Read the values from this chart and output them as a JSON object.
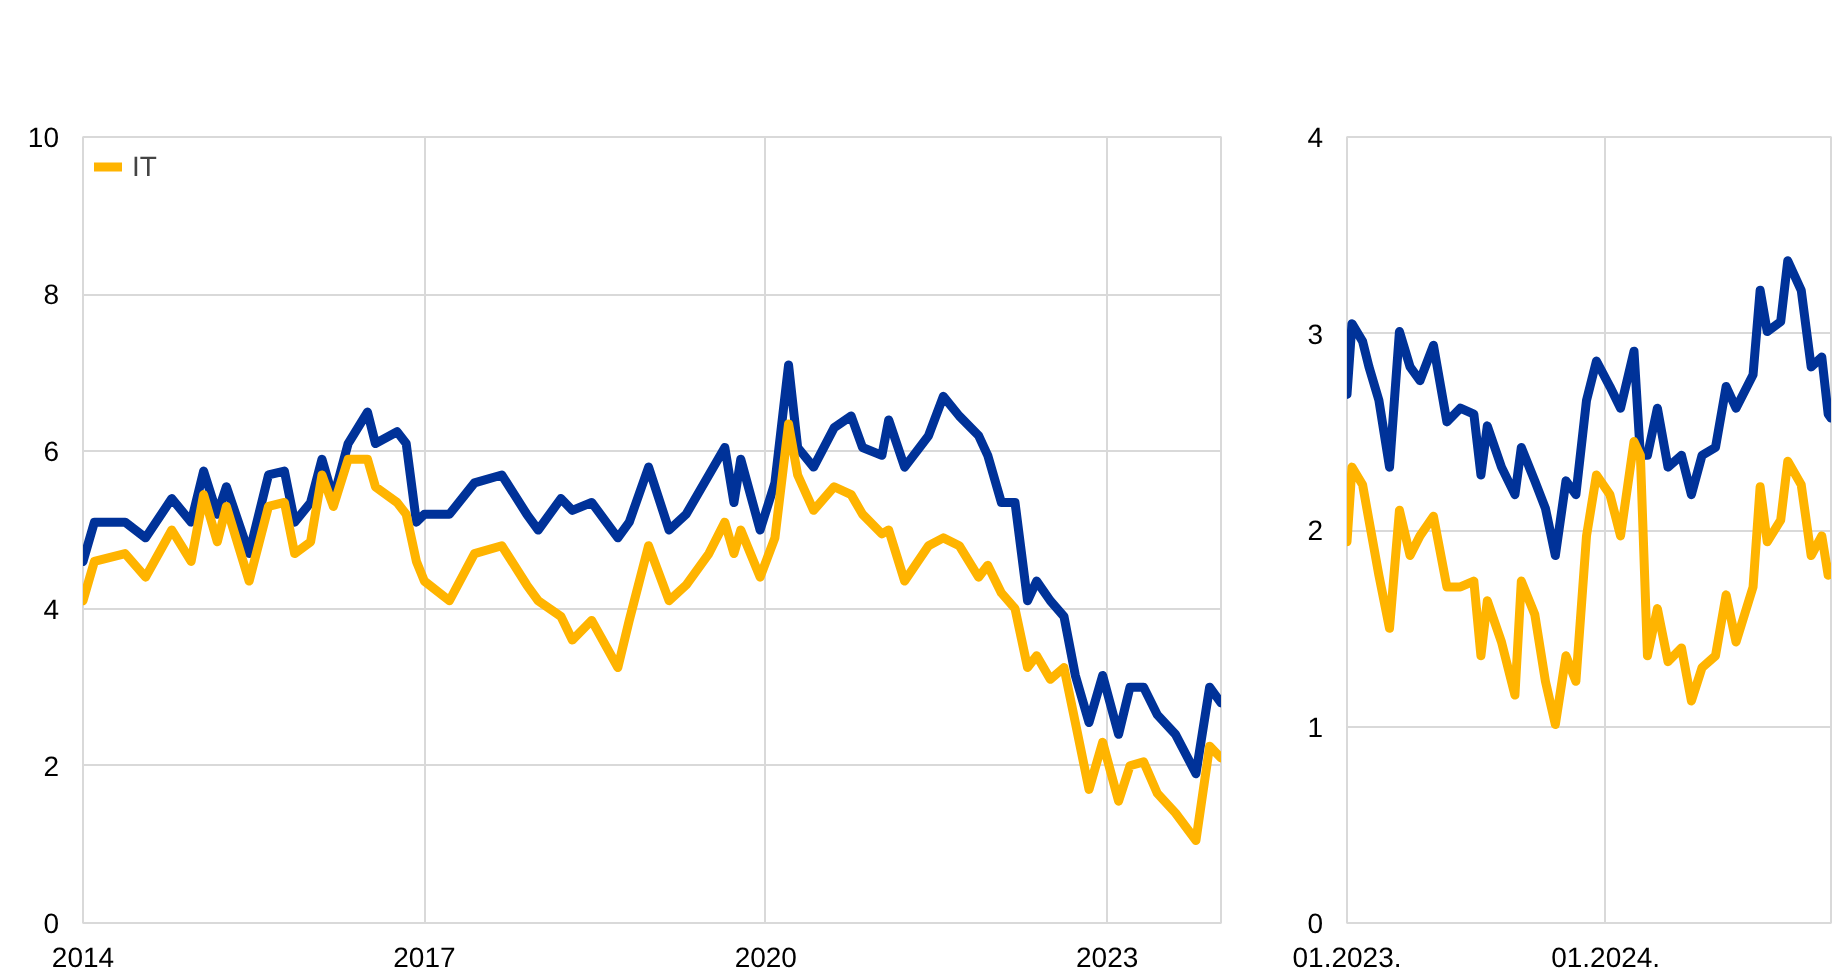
{
  "chart_data": [
    {
      "type": "line",
      "legend": "top left",
      "grid": true,
      "xlim": [
        2014,
        2024.0
      ],
      "xticks": [
        2014,
        2017,
        2020,
        2023
      ],
      "ylim": [
        0,
        10
      ],
      "yticks": [
        0,
        2,
        4,
        6,
        8,
        10
      ],
      "series": [
        {
          "color": "#003299",
          "x": [
            2014.0,
            2014.1,
            2014.37,
            2014.55,
            2014.78,
            2014.95,
            2015.06,
            2015.18,
            2015.26,
            2015.46,
            2015.63,
            2015.77,
            2015.86,
            2016.0,
            2016.1,
            2016.2,
            2016.33,
            2016.5,
            2016.57,
            2016.76,
            2016.84,
            2016.93,
            2017.0,
            2017.22,
            2017.44,
            2017.68,
            2017.9,
            2018.0,
            2018.2,
            2018.3,
            2018.47,
            2018.7,
            2018.8,
            2018.97,
            2019.15,
            2019.3,
            2019.5,
            2019.64,
            2019.72,
            2019.78,
            2019.95,
            2020.08,
            2020.2,
            2020.28,
            2020.42,
            2020.6,
            2020.75,
            2020.85,
            2021.02,
            2021.08,
            2021.22,
            2021.43,
            2021.56,
            2021.7,
            2021.87,
            2021.95,
            2022.07,
            2022.19,
            2022.3,
            2022.38,
            2022.5,
            2022.62,
            2022.72,
            2022.84,
            2022.96,
            2023.1,
            2023.2,
            2023.32,
            2023.44,
            2023.6,
            2023.78,
            2023.9,
            2024.0
          ],
          "values": [
            4.6,
            5.1,
            5.1,
            4.9,
            5.4,
            5.1,
            5.75,
            5.2,
            5.55,
            4.7,
            5.7,
            5.75,
            5.1,
            5.35,
            5.9,
            5.4,
            6.1,
            6.5,
            6.1,
            6.25,
            6.1,
            5.1,
            5.2,
            5.2,
            5.6,
            5.7,
            5.2,
            5.0,
            5.4,
            5.25,
            5.35,
            4.9,
            5.1,
            5.8,
            5.0,
            5.2,
            5.7,
            6.05,
            5.35,
            5.9,
            5.0,
            5.6,
            7.1,
            6.05,
            5.8,
            6.3,
            6.45,
            6.05,
            5.95,
            6.4,
            5.8,
            6.2,
            6.7,
            6.45,
            6.2,
            5.95,
            5.35,
            5.35,
            4.1,
            4.35,
            4.1,
            3.9,
            3.15,
            2.55,
            3.15,
            2.4,
            3.0,
            3.0,
            2.65,
            2.4,
            1.9,
            3.0,
            2.8
          ]
        },
        {
          "name": "IT",
          "color": "#ffb400",
          "x": [
            2014.0,
            2014.1,
            2014.37,
            2014.55,
            2014.78,
            2014.95,
            2015.06,
            2015.18,
            2015.26,
            2015.46,
            2015.63,
            2015.77,
            2015.86,
            2016.0,
            2016.1,
            2016.2,
            2016.33,
            2016.5,
            2016.57,
            2016.76,
            2016.84,
            2016.93,
            2017.0,
            2017.22,
            2017.44,
            2017.68,
            2017.9,
            2018.0,
            2018.2,
            2018.3,
            2018.47,
            2018.7,
            2018.8,
            2018.97,
            2019.15,
            2019.3,
            2019.5,
            2019.64,
            2019.72,
            2019.78,
            2019.95,
            2020.08,
            2020.2,
            2020.28,
            2020.42,
            2020.6,
            2020.75,
            2020.85,
            2021.02,
            2021.08,
            2021.22,
            2021.43,
            2021.56,
            2021.7,
            2021.87,
            2021.95,
            2022.07,
            2022.19,
            2022.3,
            2022.38,
            2022.5,
            2022.62,
            2022.72,
            2022.84,
            2022.96,
            2023.1,
            2023.2,
            2023.32,
            2023.44,
            2023.6,
            2023.78,
            2023.9,
            2024.0
          ],
          "values": [
            4.1,
            4.6,
            4.7,
            4.4,
            5.0,
            4.6,
            5.45,
            4.85,
            5.3,
            4.35,
            5.3,
            5.35,
            4.7,
            4.85,
            5.7,
            5.3,
            5.9,
            5.9,
            5.55,
            5.35,
            5.2,
            4.6,
            4.35,
            4.1,
            4.7,
            4.8,
            4.3,
            4.1,
            3.9,
            3.6,
            3.85,
            3.25,
            3.85,
            4.8,
            4.1,
            4.3,
            4.7,
            5.1,
            4.7,
            5.0,
            4.4,
            4.9,
            6.35,
            5.7,
            5.25,
            5.55,
            5.45,
            5.2,
            4.95,
            5.0,
            4.35,
            4.8,
            4.9,
            4.8,
            4.4,
            4.55,
            4.2,
            4.0,
            3.25,
            3.4,
            3.1,
            3.25,
            2.55,
            1.7,
            2.3,
            1.55,
            2.0,
            2.05,
            1.65,
            1.4,
            1.05,
            2.25,
            2.1
          ]
        }
      ]
    },
    {
      "type": "line",
      "grid": true,
      "xlim": [
        "2023-01-01",
        "2024-11-14"
      ],
      "xticks": [
        {
          "value": "2023-01",
          "label": "01.2023."
        },
        {
          "value": "2024-01",
          "label": "01.2024."
        }
      ],
      "ylim": [
        0,
        4
      ],
      "yticks": [
        0,
        1,
        2,
        3,
        4
      ],
      "series": [
        {
          "color": "#003299",
          "x": [
            "2023-01-01",
            "2023-01-08",
            "2023-01-23",
            "2023-02-01",
            "2023-02-15",
            "2023-03-02",
            "2023-03-16",
            "2023-03-31",
            "2023-04-14",
            "2023-05-03",
            "2023-05-22",
            "2023-06-10",
            "2023-06-29",
            "2023-07-09",
            "2023-07-18",
            "2023-08-07",
            "2023-08-26",
            "2023-09-04",
            "2023-09-23",
            "2023-10-08",
            "2023-10-22",
            "2023-11-06",
            "2023-11-20",
            "2023-12-05",
            "2023-12-19",
            "2024-01-07",
            "2024-01-22",
            "2024-02-10",
            "2024-02-19",
            "2024-02-29",
            "2024-03-14",
            "2024-03-29",
            "2024-04-17",
            "2024-05-01",
            "2024-05-16",
            "2024-06-04",
            "2024-06-19",
            "2024-07-03",
            "2024-07-27",
            "2024-08-06",
            "2024-08-16",
            "2024-09-04",
            "2024-09-14",
            "2024-10-03",
            "2024-10-17",
            "2024-11-01",
            "2024-11-10",
            "2024-11-14"
          ],
          "values": [
            2.69,
            3.05,
            2.96,
            2.83,
            2.66,
            2.32,
            3.01,
            2.83,
            2.76,
            2.94,
            2.55,
            2.62,
            2.59,
            2.28,
            2.53,
            2.32,
            2.18,
            2.42,
            2.25,
            2.11,
            1.87,
            2.25,
            2.18,
            2.66,
            2.86,
            2.73,
            2.62,
            2.91,
            2.38,
            2.38,
            2.62,
            2.32,
            2.38,
            2.18,
            2.38,
            2.42,
            2.73,
            2.62,
            2.79,
            3.22,
            3.01,
            3.06,
            3.37,
            3.22,
            2.83,
            2.88,
            2.59,
            2.57
          ]
        },
        {
          "color": "#ffb400",
          "x": [
            "2023-01-01",
            "2023-01-08",
            "2023-01-23",
            "2023-02-01",
            "2023-02-15",
            "2023-03-02",
            "2023-03-16",
            "2023-03-31",
            "2023-04-14",
            "2023-05-03",
            "2023-05-22",
            "2023-06-10",
            "2023-06-29",
            "2023-07-09",
            "2023-07-18",
            "2023-08-07",
            "2023-08-26",
            "2023-09-04",
            "2023-09-23",
            "2023-10-08",
            "2023-10-22",
            "2023-11-06",
            "2023-11-20",
            "2023-12-05",
            "2023-12-19",
            "2024-01-07",
            "2024-01-22",
            "2024-02-10",
            "2024-02-19",
            "2024-02-29",
            "2024-03-14",
            "2024-03-29",
            "2024-04-17",
            "2024-05-01",
            "2024-05-16",
            "2024-06-04",
            "2024-06-19",
            "2024-07-03",
            "2024-07-27",
            "2024-08-06",
            "2024-08-16",
            "2024-09-04",
            "2024-09-14",
            "2024-10-03",
            "2024-10-17",
            "2024-11-01",
            "2024-11-10",
            "2024-11-14"
          ],
          "values": [
            1.94,
            2.32,
            2.23,
            2.05,
            1.77,
            1.5,
            2.1,
            1.87,
            1.97,
            2.07,
            1.71,
            1.71,
            1.74,
            1.36,
            1.64,
            1.43,
            1.16,
            1.74,
            1.57,
            1.23,
            1.01,
            1.36,
            1.23,
            1.97,
            2.28,
            2.18,
            1.97,
            2.45,
            2.38,
            1.36,
            1.6,
            1.33,
            1.4,
            1.13,
            1.3,
            1.36,
            1.67,
            1.43,
            1.71,
            2.22,
            1.94,
            2.05,
            2.35,
            2.23,
            1.87,
            1.97,
            1.77,
            1.81
          ]
        }
      ]
    }
  ]
}
